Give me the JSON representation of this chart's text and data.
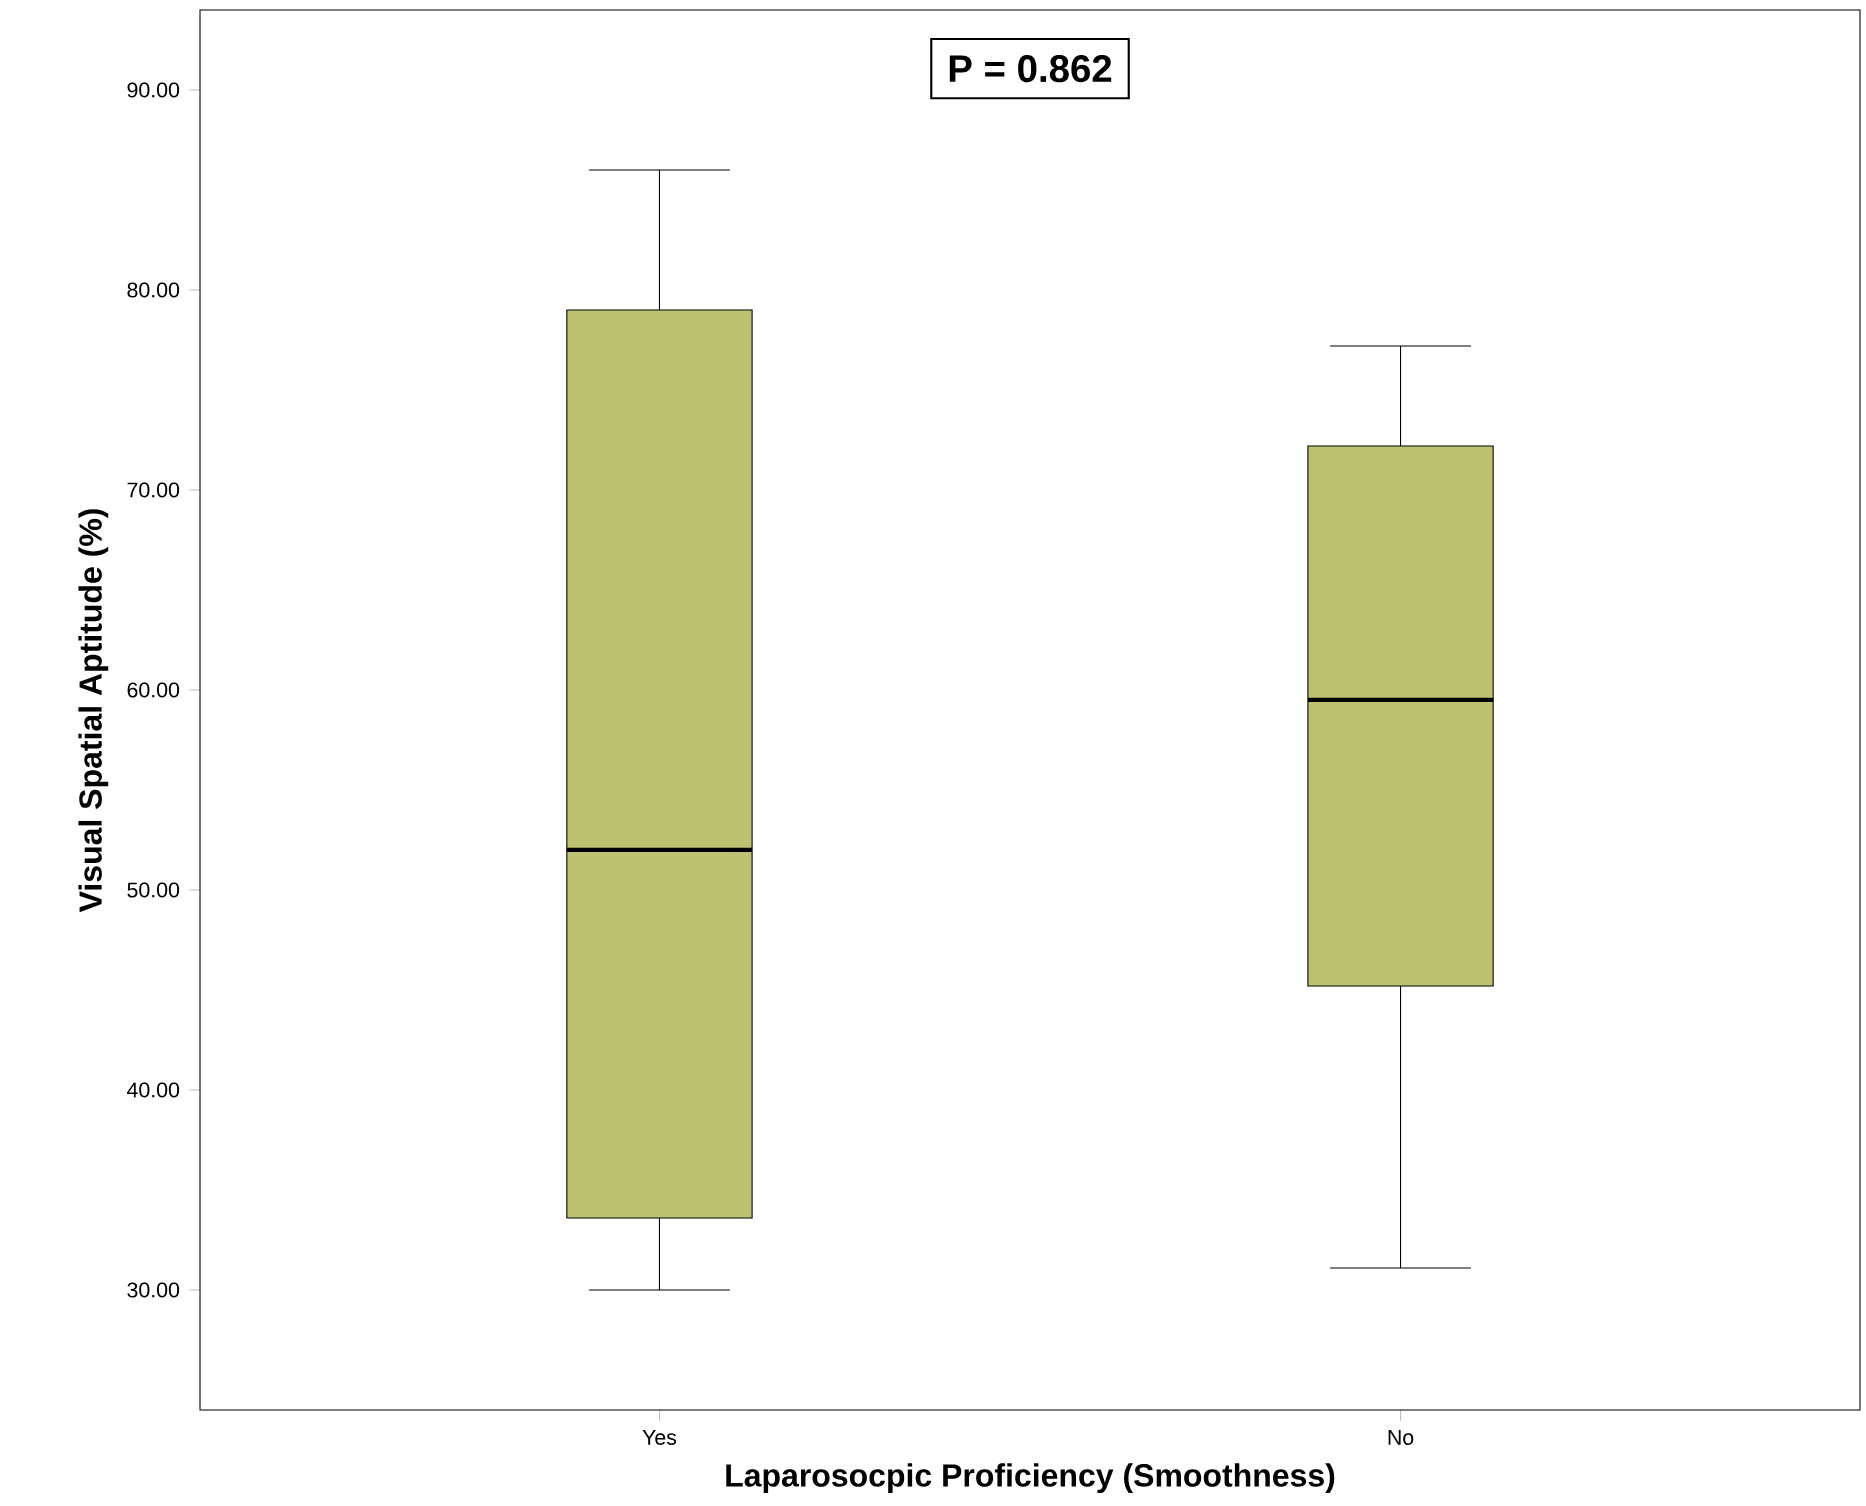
{
  "chart_data": {
    "type": "box",
    "xlabel": "Laparosocpic Proficiency (Smoothness)",
    "ylabel": "Visual Spatial Aptitude (%)",
    "categories": [
      "Yes",
      "No"
    ],
    "color": "#bcc272",
    "boxes": [
      {
        "low": 30,
        "q1": 33.6,
        "median": 52,
        "q3": 79,
        "high": 86
      },
      {
        "low": 31.1,
        "q1": 45.2,
        "median": 59.5,
        "q3": 72.2,
        "high": 77.2
      }
    ],
    "ylim": [
      24,
      94
    ],
    "yticks": [
      {
        "value": 30,
        "label": "30.00"
      },
      {
        "value": 40,
        "label": "40.00"
      },
      {
        "value": 50,
        "label": "50.00"
      },
      {
        "value": 60,
        "label": "60.00"
      },
      {
        "value": 70,
        "label": "70.00"
      },
      {
        "value": 80,
        "label": "80.00"
      },
      {
        "value": 90,
        "label": "90.00"
      }
    ],
    "annotations": [
      "P = 0.862"
    ]
  }
}
